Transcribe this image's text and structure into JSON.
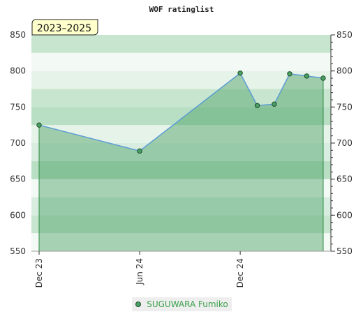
{
  "chart_data": {
    "type": "line",
    "title": "WOF ratinglist",
    "badge": "2023–2025",
    "ylim": [
      550,
      850
    ],
    "yticks": [
      550,
      600,
      650,
      700,
      750,
      800,
      850
    ],
    "xlim": [
      "2023-12-01",
      "2025-05-15"
    ],
    "xticks": [
      {
        "date": "2023-12-01",
        "label": "Dec 23"
      },
      {
        "date": "2024-06-01",
        "label": "Jun 24"
      },
      {
        "date": "2024-12-01",
        "label": "Dec 24"
      }
    ],
    "series": [
      {
        "name": "SUGUWARA Fumiko",
        "color": "#4aa064",
        "points": [
          {
            "x": "2023-12-01",
            "y": 725
          },
          {
            "x": "2024-06-01",
            "y": 689
          },
          {
            "x": "2024-12-01",
            "y": 797
          },
          {
            "x": "2025-01-01",
            "y": 752
          },
          {
            "x": "2025-02-01",
            "y": 754
          },
          {
            "x": "2025-03-01",
            "y": 796
          },
          {
            "x": "2025-04-01",
            "y": 793
          },
          {
            "x": "2025-05-01",
            "y": 790
          }
        ]
      }
    ],
    "grid": true,
    "legend_position": "bottom-center"
  }
}
